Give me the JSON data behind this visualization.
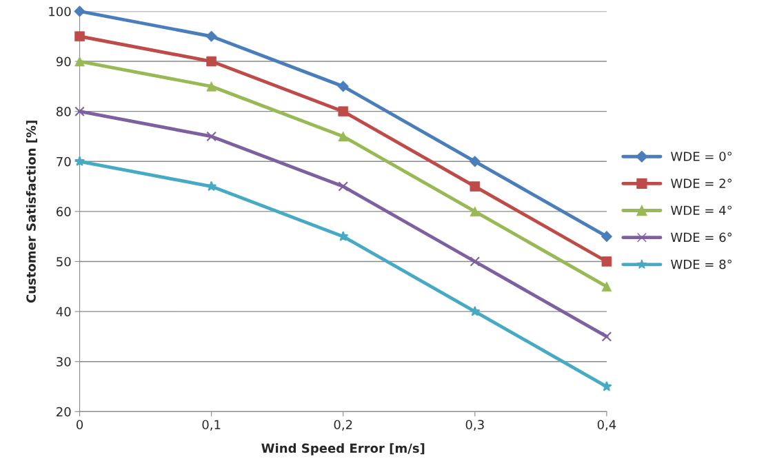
{
  "chart_data": {
    "type": "line",
    "xlabel": "Wind Speed Error [m/s]",
    "ylabel": "Customer Satisfaction [%]",
    "x": [
      0,
      0.1,
      0.2,
      0.3,
      0.4
    ],
    "series": [
      {
        "name": "WDE = 0°",
        "color": "#4a7ebb",
        "marker": "diamond",
        "values": [
          100,
          95,
          85,
          70,
          55
        ]
      },
      {
        "name": "WDE = 2°",
        "color": "#be4b48",
        "marker": "square",
        "values": [
          95,
          90,
          80,
          65,
          50
        ]
      },
      {
        "name": "WDE = 4°",
        "color": "#98b954",
        "marker": "triangle",
        "values": [
          90,
          85,
          75,
          60,
          45
        ]
      },
      {
        "name": "WDE = 6°",
        "color": "#7d60a0",
        "marker": "cross",
        "values": [
          80,
          75,
          65,
          50,
          35
        ]
      },
      {
        "name": "WDE = 8°",
        "color": "#46aac5",
        "marker": "star",
        "values": [
          70,
          65,
          55,
          40,
          25
        ]
      }
    ],
    "xlim": [
      0,
      0.4
    ],
    "xticks": [
      0,
      {
        "value": 0.1,
        "label": "0,1"
      },
      {
        "value": 0.2,
        "label": "0,2"
      },
      {
        "value": 0.3,
        "label": "0,3"
      },
      {
        "value": 0.4,
        "label": "0,4"
      }
    ],
    "ylim": [
      20,
      100
    ],
    "yticks": [
      20,
      30,
      40,
      50,
      60,
      70,
      80,
      90,
      100
    ],
    "grid": "y",
    "legend": "right",
    "line_style": "solid"
  }
}
